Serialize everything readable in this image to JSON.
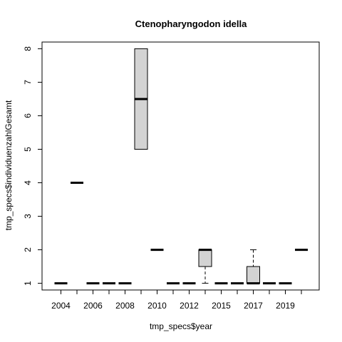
{
  "chart_data": {
    "type": "boxplot",
    "title": "Ctenopharyngodon idella",
    "xlabel": "tmp_specs$year",
    "ylabel": "tmp_specs$individuenzahlGesamt",
    "ylim": [
      0.8,
      8.2
    ],
    "y_ticks": [
      1,
      2,
      3,
      4,
      5,
      6,
      7,
      8
    ],
    "categories": [
      "2004",
      "2005",
      "2006",
      "2007",
      "2008",
      "2009",
      "2010",
      "2011",
      "2012",
      "2013",
      "2015",
      "2016",
      "2017",
      "2018",
      "2019",
      "2020"
    ],
    "x_tick_labels_shown": [
      "2004",
      "2006",
      "2008",
      "2010",
      "2012",
      "2015",
      "2017",
      "2019"
    ],
    "boxes": [
      {
        "year": "2004",
        "min": 1,
        "q1": 1,
        "median": 1,
        "q3": 1,
        "max": 1
      },
      {
        "year": "2005",
        "min": 4,
        "q1": 4,
        "median": 4,
        "q3": 4,
        "max": 4
      },
      {
        "year": "2006",
        "min": 1,
        "q1": 1,
        "median": 1,
        "q3": 1,
        "max": 1
      },
      {
        "year": "2007",
        "min": 1,
        "q1": 1,
        "median": 1,
        "q3": 1,
        "max": 1
      },
      {
        "year": "2008",
        "min": 1,
        "q1": 1,
        "median": 1,
        "q3": 1,
        "max": 1
      },
      {
        "year": "2009",
        "min": 5,
        "q1": 5,
        "median": 6.5,
        "q3": 8,
        "max": 8
      },
      {
        "year": "2010",
        "min": 2,
        "q1": 2,
        "median": 2,
        "q3": 2,
        "max": 2
      },
      {
        "year": "2011",
        "min": 1,
        "q1": 1,
        "median": 1,
        "q3": 1,
        "max": 1
      },
      {
        "year": "2012",
        "min": 1,
        "q1": 1,
        "median": 1,
        "q3": 1,
        "max": 1
      },
      {
        "year": "2013",
        "min": 1,
        "q1": 1.5,
        "median": 2,
        "q3": 2,
        "max": 2
      },
      {
        "year": "2015",
        "min": 1,
        "q1": 1,
        "median": 1,
        "q3": 1,
        "max": 1
      },
      {
        "year": "2016",
        "min": 1,
        "q1": 1,
        "median": 1,
        "q3": 1,
        "max": 1
      },
      {
        "year": "2017",
        "min": 1,
        "q1": 1,
        "median": 1,
        "q3": 1.5,
        "max": 2
      },
      {
        "year": "2018",
        "min": 1,
        "q1": 1,
        "median": 1,
        "q3": 1,
        "max": 1
      },
      {
        "year": "2019",
        "min": 1,
        "q1": 1,
        "median": 1,
        "q3": 1,
        "max": 1
      },
      {
        "year": "2020",
        "min": 2,
        "q1": 2,
        "median": 2,
        "q3": 2,
        "max": 2
      }
    ],
    "colors": {
      "box_fill": "#d3d3d3",
      "stroke": "#000000"
    }
  }
}
